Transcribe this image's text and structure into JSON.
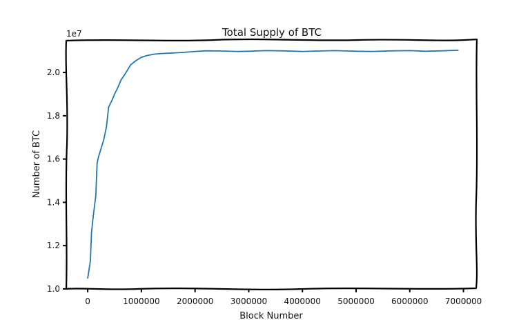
{
  "chart_data": {
    "type": "line",
    "title": "Total Supply of BTC",
    "xlabel": "Block Number",
    "ylabel": "Number of BTC",
    "y_scale_label": "1e7",
    "xlim": [
      -400000,
      7250000
    ],
    "ylim": [
      1.0,
      2.15
    ],
    "x_ticks": [
      0,
      1000000,
      2000000,
      3000000,
      4000000,
      5000000,
      6000000,
      7000000
    ],
    "x_tick_labels": [
      "0",
      "1000000",
      "2000000",
      "3000000",
      "4000000",
      "5000000",
      "6000000",
      "7000000"
    ],
    "y_ticks": [
      1.0,
      1.2,
      1.4,
      1.6,
      1.8,
      2.0
    ],
    "y_tick_labels": [
      "1.0",
      "1.2",
      "1.4",
      "1.6",
      "1.8",
      "2.0"
    ],
    "grid": false,
    "legend": "none",
    "series": [
      {
        "color": "#1f77b4",
        "x": [
          0,
          50000,
          70000,
          100000,
          150000,
          175000,
          200000,
          250000,
          300000,
          350000,
          390000,
          450000,
          500000,
          560000,
          620000,
          700000,
          800000,
          900000,
          1000000,
          1100000,
          1250000,
          1400000,
          1600000,
          1800000,
          2000000,
          2200000,
          2500000,
          2800000,
          3000000,
          3300000,
          3600000,
          4000000,
          4300000,
          4600000,
          5000000,
          5300000,
          5700000,
          6000000,
          6300000,
          6600000,
          6900000
        ],
        "y": [
          1.05,
          1.13,
          1.26,
          1.33,
          1.43,
          1.58,
          1.61,
          1.65,
          1.69,
          1.75,
          1.84,
          1.87,
          1.9,
          1.93,
          1.965,
          1.995,
          2.035,
          2.055,
          2.07,
          2.078,
          2.085,
          2.088,
          2.09,
          2.093,
          2.097,
          2.1,
          2.099,
          2.097,
          2.098,
          2.101,
          2.1,
          2.097,
          2.099,
          2.101,
          2.098,
          2.097,
          2.1,
          2.101,
          2.098,
          2.1,
          2.103
        ]
      }
    ]
  }
}
